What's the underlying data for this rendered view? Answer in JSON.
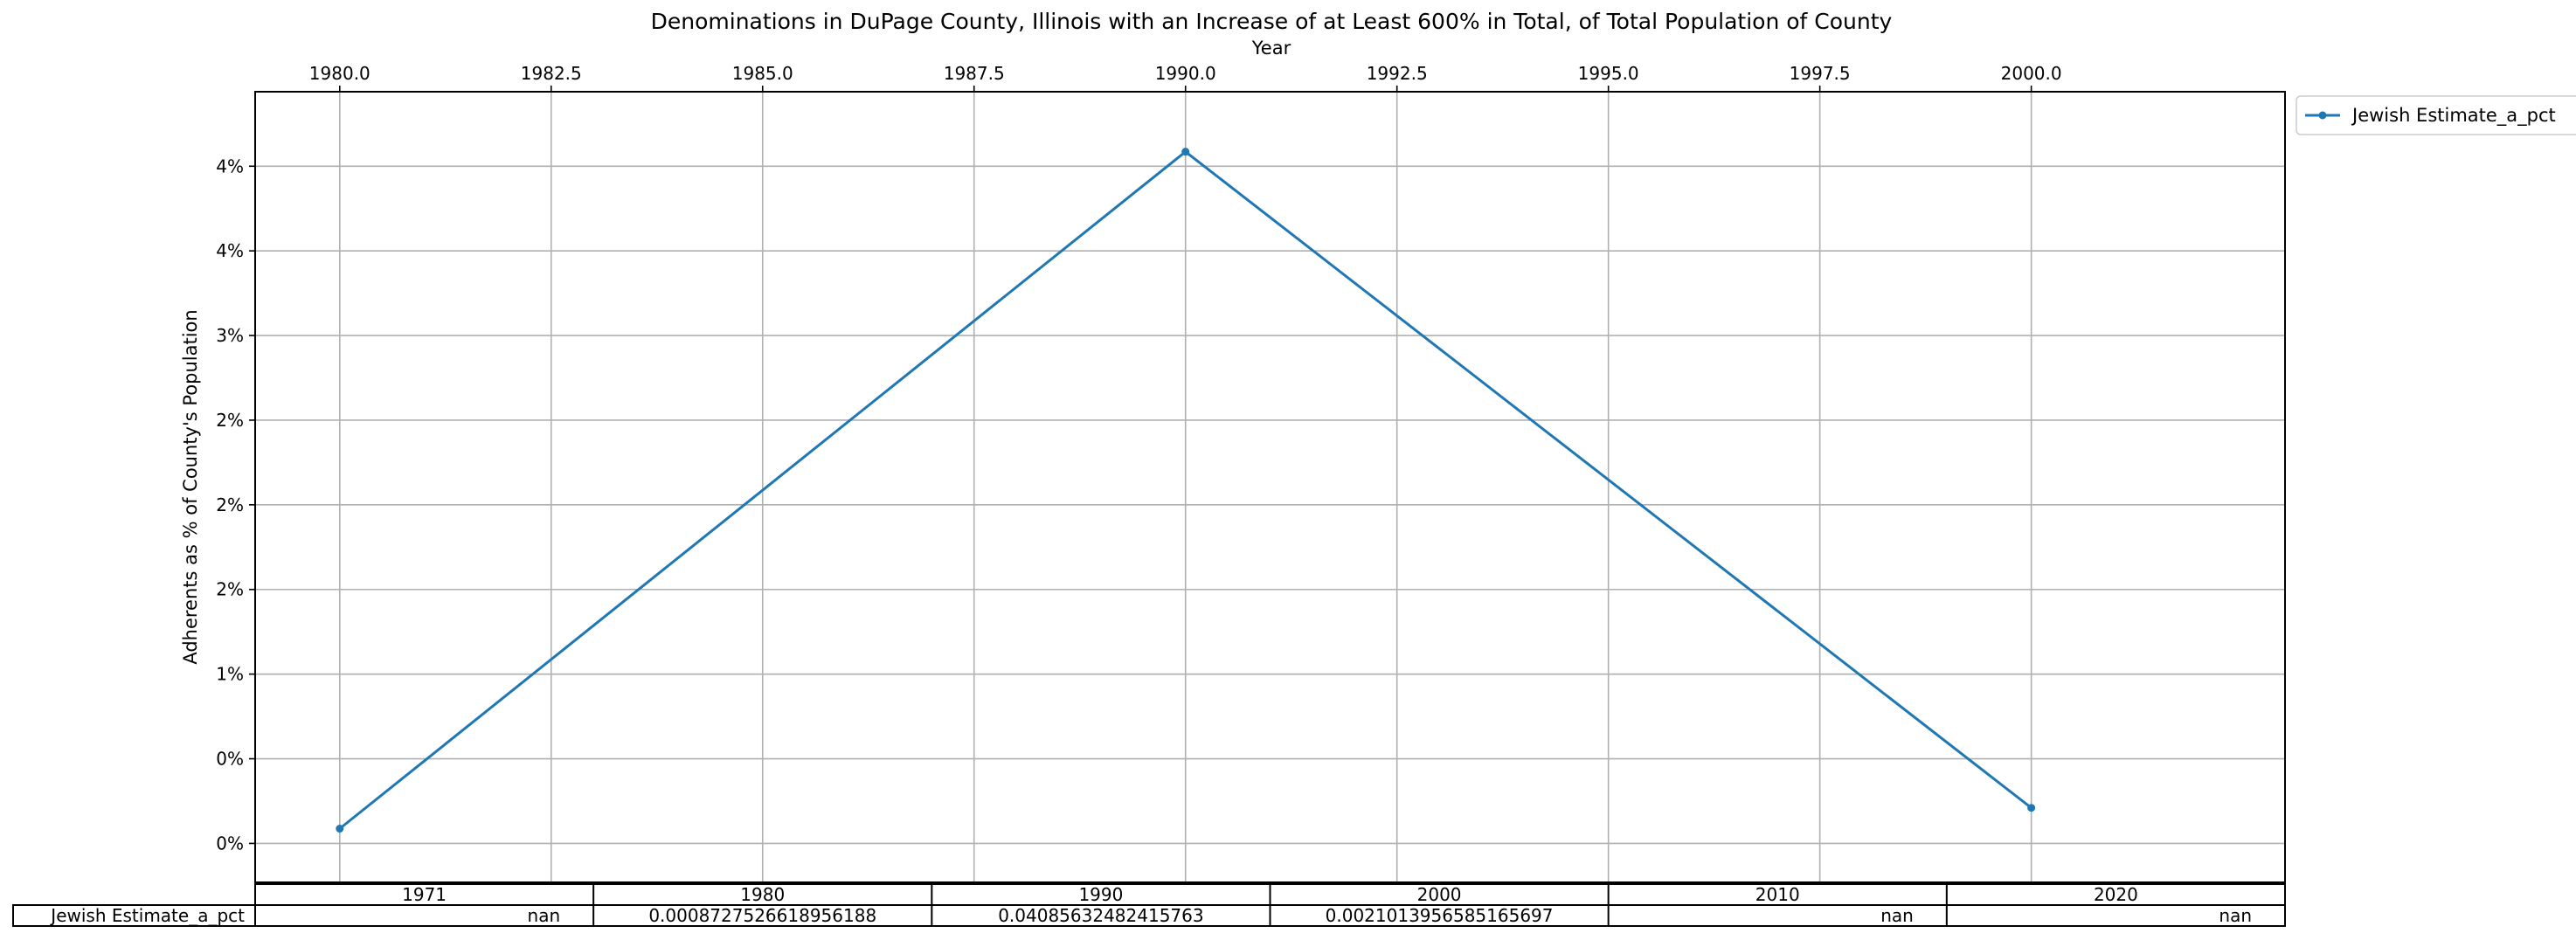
{
  "chart_data": {
    "type": "line",
    "title": "Denominations in DuPage County, Illinois with an Increase of at Least 600% in Total, of Total Population of County",
    "xlabel": "Year",
    "ylabel": "Adherents as % of County's Population",
    "x_axis_position": "top",
    "xlim": [
      1979.0,
      2003.0
    ],
    "ylim": [
      -0.0023,
      0.0444
    ],
    "x_ticks": [
      1980.0,
      1982.5,
      1985.0,
      1987.5,
      1990.0,
      1992.5,
      1995.0,
      1997.5,
      2000.0
    ],
    "x_tick_labels": [
      "1980.0",
      "1982.5",
      "1985.0",
      "1987.5",
      "1990.0",
      "1992.5",
      "1995.0",
      "1997.5",
      "2000.0"
    ],
    "y_ticks": [
      0.0,
      0.005,
      0.01,
      0.015,
      0.02,
      0.025,
      0.03,
      0.035,
      0.04
    ],
    "y_tick_labels": [
      "0%",
      "0%",
      "1%",
      "2%",
      "2%",
      "2%",
      "3%",
      "4%",
      "4%"
    ],
    "grid": true,
    "legend_position": "outside-top-right",
    "series": [
      {
        "name": "Jewish Estimate_a_pct",
        "color": "#1f77b4",
        "x": [
          1980,
          1990,
          2000
        ],
        "values": [
          0.0008727526618956188,
          0.04085632482415763,
          0.002101395658516569
        ]
      }
    ],
    "table": {
      "columns": [
        "1971",
        "1980",
        "1990",
        "2000",
        "2010",
        "2020"
      ],
      "rows": [
        {
          "label": "Jewish Estimate_a_pct",
          "cells": [
            "nan",
            "0.0008727526618956188",
            "0.04085632482415763",
            "0.002101395658516569​7",
            "nan",
            "nan"
          ]
        }
      ]
    }
  }
}
